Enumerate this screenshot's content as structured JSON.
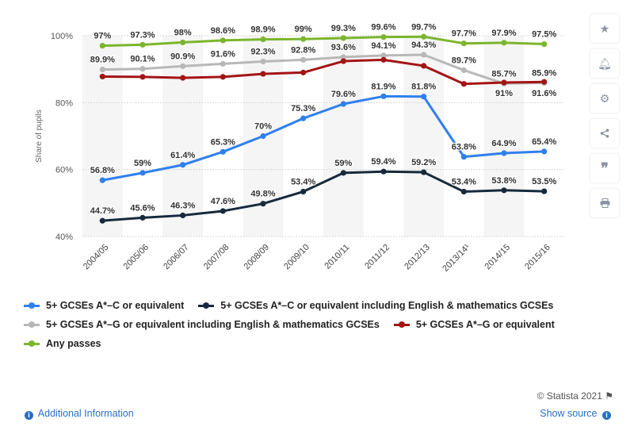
{
  "chart_data": {
    "type": "line",
    "ylabel": "Share of pupils",
    "xlabel": "",
    "title": "",
    "ylim": [
      40,
      100
    ],
    "yticks": [
      "40%",
      "60%",
      "80%",
      "100%"
    ],
    "yticks_values": [
      40,
      60,
      80,
      100
    ],
    "categories": [
      "2004/05",
      "2005/06",
      "2006/07",
      "2007/08",
      "2008/09",
      "2009/10",
      "2010/11",
      "2011/12",
      "2012/13",
      "2013/14¹",
      "2014/15",
      "2015/16"
    ],
    "grid": true,
    "legend_position": "bottom",
    "series": [
      {
        "name": "5+ GCSEs A*–C or equivalent",
        "color": "#2f80ed",
        "values": [
          56.8,
          59,
          61.4,
          65.3,
          70,
          75.3,
          79.6,
          81.9,
          81.8,
          63.8,
          64.9,
          65.4
        ],
        "labels": [
          "56.8%",
          "59%",
          "61.4%",
          "65.3%",
          "70%",
          "75.3%",
          "79.6%",
          "81.9%",
          "81.8%",
          "63.8%",
          "64.9%",
          "65.4%"
        ]
      },
      {
        "name": "5+ GCSEs A*–C or equivalent including English & mathematics GCSEs",
        "color": "#172a3d",
        "values": [
          44.7,
          45.6,
          46.3,
          47.6,
          49.8,
          53.4,
          59,
          59.4,
          59.2,
          53.4,
          53.8,
          53.5
        ],
        "labels": [
          "44.7%",
          "45.6%",
          "46.3%",
          "47.6%",
          "49.8%",
          "53.4%",
          "59%",
          "59.4%",
          "59.2%",
          "53.4%",
          "53.8%",
          "53.5%"
        ]
      },
      {
        "name": "5+ GCSEs A*–G or equivalent including English & mathematics GCSEs",
        "color": "#b8b8b8",
        "values": [
          89.9,
          90.1,
          90.9,
          91.6,
          92.3,
          92.8,
          93.6,
          94.1,
          94.3,
          89.7,
          85.7,
          85.9
        ],
        "labels": [
          "89.9%",
          "90.1%",
          "90.9%",
          "91.6%",
          "92.3%",
          "92.8%",
          "93.6%",
          "94.1%",
          "94.3%",
          "89.7%",
          "85.7%",
          "85.9%"
        ]
      },
      {
        "name": "5+ GCSEs A*–G or equivalent",
        "color": "#a31515",
        "values": [
          87.8,
          87.7,
          87.4,
          87.7,
          88.6,
          89,
          92.4,
          92.8,
          91,
          85.6,
          86,
          86.2
        ],
        "labels": [],
        "note": "values not printed; read from plot"
      },
      {
        "name": "Any passes",
        "color": "#7bb62d",
        "values": [
          97,
          97.3,
          98,
          98.6,
          98.9,
          99,
          99.3,
          99.6,
          99.7,
          97.7,
          97.9,
          97.5
        ],
        "labels": [
          "97%",
          "97.3%",
          "98%",
          "98.6%",
          "98.9%",
          "99%",
          "99.3%",
          "99.6%",
          "99.7%",
          "97.7%",
          "97.9%",
          "97.5%"
        ]
      }
    ],
    "extra_labels": [
      "91%",
      "91.6%"
    ]
  },
  "legend": {
    "row1": [
      "5+ GCSEs A*–C or equivalent",
      "5+ GCSEs A*–C or equivalent including English & mathematics GCSEs"
    ],
    "row2": [
      "5+ GCSEs A*–G or equivalent including English & mathematics GCSEs",
      "5+ GCSEs A*–G or equivalent"
    ],
    "row3": [
      "Any passes"
    ]
  },
  "colors": {
    "series1": "#2f80ed",
    "series2": "#172a3d",
    "series3": "#b8b8b8",
    "series4": "#a31515",
    "series5": "#7bb62d",
    "link": "#2a6fc9"
  },
  "toolbar": {
    "icons": [
      "star-icon",
      "bell-icon",
      "gear-icon",
      "share-icon",
      "quote-icon",
      "print-icon"
    ]
  },
  "footer": {
    "credit": "© Statista 2021",
    "additional_info": "Additional Information",
    "show_source": "Show source"
  }
}
